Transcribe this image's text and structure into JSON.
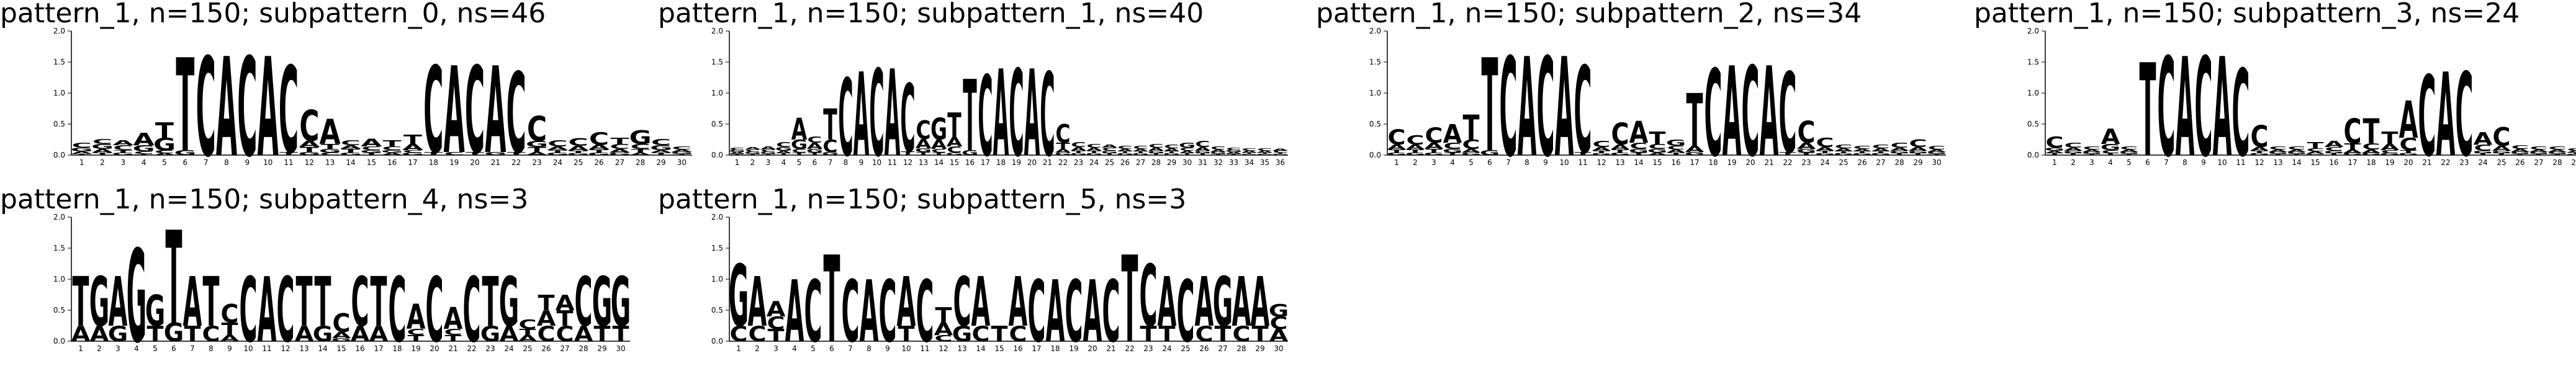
{
  "colors": {
    "A": "#008000",
    "C": "#0000ff",
    "G": "#ffa500",
    "T": "#ff0000"
  },
  "y_ticks": [
    "0.0",
    "0.5",
    "1.0",
    "1.5",
    "2.0"
  ],
  "chart_data": [
    {
      "type": "sequence-logo",
      "title": "pattern_1, n=150; subpattern_0, ns=46",
      "xlabel": "",
      "ylabel": "",
      "ylim": [
        0,
        2
      ],
      "positions": [
        "1",
        "2",
        "3",
        "4",
        "5",
        "6",
        "7",
        "8",
        "9",
        "10",
        "11",
        "12",
        "13",
        "14",
        "15",
        "16",
        "17",
        "18",
        "19",
        "20",
        "21",
        "22",
        "23",
        "24",
        "25",
        "26",
        "27",
        "28",
        "29",
        "30"
      ],
      "columns": [
        {
          "C": 0.08,
          "G": 0.06,
          "A": 0.04,
          "T": 0.02
        },
        {
          "G": 0.08,
          "C": 0.08,
          "A": 0.06,
          "T": 0.04
        },
        {
          "C": 0.08,
          "A": 0.08,
          "G": 0.04,
          "T": 0.04
        },
        {
          "A": 0.2,
          "G": 0.1,
          "C": 0.04,
          "T": 0.02
        },
        {
          "T": 0.25,
          "G": 0.2,
          "C": 0.05,
          "A": 0.03
        },
        {
          "T": 1.5,
          "G": 0.08
        },
        {
          "C": 1.6
        },
        {
          "A": 1.6
        },
        {
          "C": 1.6
        },
        {
          "A": 1.6
        },
        {
          "C": 1.4,
          "T": 0.05
        },
        {
          "C": 0.5,
          "A": 0.1,
          "T": 0.08,
          "G": 0.05
        },
        {
          "A": 0.4,
          "T": 0.08,
          "G": 0.06,
          "C": 0.04
        },
        {
          "C": 0.08,
          "T": 0.06,
          "A": 0.06,
          "G": 0.04
        },
        {
          "A": 0.12,
          "C": 0.06,
          "T": 0.04,
          "G": 0.04
        },
        {
          "T": 0.1,
          "C": 0.06,
          "A": 0.04,
          "G": 0.04
        },
        {
          "T": 0.15,
          "A": 0.1,
          "G": 0.04,
          "C": 0.04
        },
        {
          "C": 1.4,
          "T": 0.05
        },
        {
          "A": 1.4,
          "C": 0.05
        },
        {
          "C": 1.4,
          "T": 0.05
        },
        {
          "A": 1.4,
          "G": 0.05
        },
        {
          "C": 1.3,
          "T": 0.05
        },
        {
          "C": 0.4,
          "G": 0.1,
          "T": 0.08,
          "A": 0.05
        },
        {
          "C": 0.1,
          "A": 0.06,
          "G": 0.04,
          "T": 0.04
        },
        {
          "C": 0.12,
          "A": 0.08,
          "T": 0.04,
          "G": 0.03
        },
        {
          "C": 0.2,
          "A": 0.08,
          "T": 0.05,
          "G": 0.04
        },
        {
          "T": 0.1,
          "C": 0.08,
          "A": 0.06,
          "G": 0.04
        },
        {
          "G": 0.22,
          "C": 0.08,
          "T": 0.06,
          "A": 0.04
        },
        {
          "C": 0.1,
          "G": 0.08,
          "T": 0.04,
          "A": 0.04
        },
        {
          "C": 0.05,
          "A": 0.04,
          "G": 0.03,
          "T": 0.02
        }
      ]
    },
    {
      "type": "sequence-logo",
      "title": "pattern_1, n=150; subpattern_1, ns=40",
      "xlabel": "",
      "ylabel": "",
      "ylim": [
        0,
        2
      ],
      "positions": [
        "1",
        "2",
        "3",
        "4",
        "5",
        "6",
        "7",
        "8",
        "9",
        "10",
        "11",
        "12",
        "13",
        "14",
        "15",
        "16",
        "17",
        "18",
        "19",
        "20",
        "21",
        "22",
        "23",
        "24",
        "25",
        "26",
        "27",
        "28",
        "29",
        "30",
        "31",
        "32",
        "33",
        "34",
        "35",
        "36"
      ],
      "columns": [
        {
          "C": 0.04,
          "A": 0.03,
          "G": 0.03,
          "T": 0.02
        },
        {
          "C": 0.04,
          "A": 0.04,
          "G": 0.03,
          "T": 0.02
        },
        {
          "A": 0.05,
          "C": 0.04,
          "G": 0.03,
          "T": 0.02
        },
        {
          "C": 0.08,
          "G": 0.06,
          "A": 0.04,
          "T": 0.03
        },
        {
          "A": 0.35,
          "G": 0.15,
          "C": 0.06,
          "T": 0.04
        },
        {
          "A": 0.1,
          "C": 0.1,
          "G": 0.06,
          "T": 0.04
        },
        {
          "T": 0.5,
          "C": 0.2,
          "G": 0.05
        },
        {
          "C": 1.25
        },
        {
          "A": 1.35
        },
        {
          "C": 1.4
        },
        {
          "A": 1.4
        },
        {
          "C": 1.1,
          "T": 0.06
        },
        {
          "C": 0.3,
          "A": 0.15,
          "G": 0.06,
          "T": 0.05
        },
        {
          "G": 0.35,
          "A": 0.15,
          "C": 0.06,
          "T": 0.04
        },
        {
          "T": 0.4,
          "A": 0.15,
          "C": 0.1,
          "G": 0.04
        },
        {
          "T": 1.15,
          "G": 0.08
        },
        {
          "C": 1.3
        },
        {
          "A": 1.4
        },
        {
          "C": 1.4
        },
        {
          "A": 1.4
        },
        {
          "C": 1.35
        },
        {
          "C": 0.3,
          "T": 0.1,
          "A": 0.06,
          "G": 0.04
        },
        {
          "C": 0.08,
          "A": 0.06,
          "T": 0.04,
          "G": 0.03
        },
        {
          "C": 0.06,
          "A": 0.05,
          "T": 0.04,
          "G": 0.03
        },
        {
          "C": 0.05,
          "A": 0.05,
          "G": 0.04,
          "T": 0.03
        },
        {
          "C": 0.05,
          "A": 0.04,
          "G": 0.03,
          "T": 0.03
        },
        {
          "C": 0.05,
          "A": 0.04,
          "G": 0.03,
          "T": 0.03
        },
        {
          "C": 0.06,
          "A": 0.05,
          "G": 0.04,
          "T": 0.03
        },
        {
          "C": 0.06,
          "A": 0.05,
          "G": 0.03,
          "T": 0.03
        },
        {
          "G": 0.08,
          "C": 0.05,
          "A": 0.04,
          "T": 0.03
        },
        {
          "C": 0.1,
          "A": 0.06,
          "G": 0.04,
          "T": 0.03
        },
        {
          "C": 0.05,
          "A": 0.04,
          "G": 0.03,
          "T": 0.02
        },
        {
          "C": 0.04,
          "A": 0.03,
          "G": 0.03,
          "T": 0.02
        },
        {
          "C": 0.04,
          "A": 0.03,
          "G": 0.02,
          "T": 0.02
        },
        {
          "C": 0.04,
          "A": 0.03,
          "G": 0.02,
          "T": 0.02
        },
        {
          "C": 0.03,
          "A": 0.03,
          "G": 0.02,
          "T": 0.02
        }
      ]
    },
    {
      "type": "sequence-logo",
      "title": "pattern_1, n=150; subpattern_2, ns=34",
      "xlabel": "",
      "ylabel": "",
      "ylim": [
        0,
        2
      ],
      "positions": [
        "1",
        "2",
        "3",
        "4",
        "5",
        "6",
        "7",
        "8",
        "9",
        "10",
        "11",
        "12",
        "13",
        "14",
        "15",
        "16",
        "17",
        "18",
        "19",
        "20",
        "21",
        "22",
        "23",
        "24",
        "25",
        "26",
        "27",
        "28",
        "29",
        "30"
      ],
      "columns": [
        {
          "C": 0.25,
          "A": 0.08,
          "T": 0.05,
          "G": 0.04
        },
        {
          "C": 0.15,
          "A": 0.08,
          "T": 0.05,
          "G": 0.04
        },
        {
          "C": 0.25,
          "A": 0.1,
          "T": 0.06,
          "G": 0.04
        },
        {
          "A": 0.3,
          "C": 0.1,
          "G": 0.06,
          "T": 0.04
        },
        {
          "T": 0.4,
          "C": 0.15,
          "A": 0.06,
          "G": 0.04
        },
        {
          "T": 1.5,
          "G": 0.08
        },
        {
          "C": 1.6
        },
        {
          "A": 1.6
        },
        {
          "C": 1.6
        },
        {
          "A": 1.6
        },
        {
          "C": 1.4,
          "T": 0.05
        },
        {
          "C": 0.1,
          "A": 0.06,
          "T": 0.04,
          "G": 0.03
        },
        {
          "C": 0.35,
          "A": 0.08,
          "T": 0.05,
          "G": 0.04
        },
        {
          "A": 0.35,
          "C": 0.1,
          "G": 0.06,
          "T": 0.04
        },
        {
          "T": 0.2,
          "C": 0.08,
          "G": 0.06,
          "A": 0.04
        },
        {
          "G": 0.1,
          "C": 0.06,
          "A": 0.05,
          "T": 0.04
        },
        {
          "T": 0.85,
          "A": 0.1,
          "G": 0.05
        },
        {
          "C": 1.4
        },
        {
          "A": 1.45
        },
        {
          "C": 1.45
        },
        {
          "A": 1.45
        },
        {
          "C": 1.3,
          "T": 0.05
        },
        {
          "C": 0.35,
          "A": 0.1,
          "G": 0.06,
          "T": 0.04
        },
        {
          "C": 0.15,
          "A": 0.06,
          "T": 0.04,
          "G": 0.03
        },
        {
          "C": 0.06,
          "A": 0.05,
          "G": 0.03,
          "T": 0.03
        },
        {
          "C": 0.05,
          "A": 0.04,
          "G": 0.03,
          "T": 0.03
        },
        {
          "C": 0.06,
          "A": 0.05,
          "G": 0.03,
          "T": 0.03
        },
        {
          "C": 0.08,
          "A": 0.05,
          "G": 0.04,
          "T": 0.03
        },
        {
          "C": 0.12,
          "A": 0.06,
          "G": 0.04,
          "T": 0.03
        },
        {
          "C": 0.06,
          "A": 0.04,
          "G": 0.03,
          "T": 0.02
        }
      ]
    },
    {
      "type": "sequence-logo",
      "title": "pattern_1, n=150; subpattern_3, ns=24",
      "xlabel": "",
      "ylabel": "",
      "ylim": [
        0,
        2
      ],
      "positions": [
        "1",
        "2",
        "3",
        "4",
        "5",
        "6",
        "7",
        "8",
        "9",
        "10",
        "11",
        "12",
        "13",
        "14",
        "15",
        "16",
        "17",
        "18",
        "19",
        "20",
        "21",
        "22",
        "23",
        "24",
        "25",
        "26",
        "27",
        "28",
        "29",
        "30"
      ],
      "columns": [
        {
          "C": 0.18,
          "G": 0.05,
          "A": 0.04,
          "T": 0.03
        },
        {
          "C": 0.08,
          "A": 0.05,
          "G": 0.04,
          "T": 0.03
        },
        {
          "C": 0.05,
          "A": 0.04,
          "G": 0.03,
          "T": 0.02
        },
        {
          "A": 0.25,
          "G": 0.1,
          "C": 0.05,
          "T": 0.03
        },
        {
          "C": 0.05,
          "A": 0.04,
          "G": 0.03,
          "T": 0.02
        },
        {
          "T": 1.5
        },
        {
          "C": 1.6
        },
        {
          "A": 1.6
        },
        {
          "C": 1.6
        },
        {
          "A": 1.6
        },
        {
          "C": 1.4
        },
        {
          "C": 0.35,
          "A": 0.06,
          "T": 0.04,
          "G": 0.03
        },
        {
          "C": 0.05,
          "A": 0.04,
          "G": 0.03,
          "T": 0.02
        },
        {
          "C": 0.05,
          "A": 0.04,
          "G": 0.03,
          "T": 0.02
        },
        {
          "T": 0.1,
          "C": 0.05,
          "A": 0.04,
          "G": 0.02
        },
        {
          "A": 0.1,
          "C": 0.06,
          "G": 0.04,
          "T": 0.03
        },
        {
          "C": 0.4,
          "T": 0.1,
          "A": 0.06,
          "G": 0.03
        },
        {
          "T": 0.4,
          "C": 0.1,
          "A": 0.06,
          "G": 0.03
        },
        {
          "T": 0.2,
          "A": 0.1,
          "C": 0.05,
          "G": 0.03
        },
        {
          "A": 0.6,
          "C": 0.2,
          "T": 0.05,
          "G": 0.03
        },
        {
          "C": 1.3
        },
        {
          "A": 1.35
        },
        {
          "C": 1.35
        },
        {
          "A": 0.2,
          "C": 0.1,
          "G": 0.04,
          "T": 0.03
        },
        {
          "C": 0.3,
          "A": 0.08,
          "G": 0.04,
          "T": 0.03
        },
        {
          "C": 0.06,
          "A": 0.05,
          "G": 0.03,
          "T": 0.02
        },
        {
          "C": 0.05,
          "A": 0.04,
          "G": 0.03,
          "T": 0.02
        },
        {
          "C": 0.05,
          "A": 0.04,
          "G": 0.03,
          "T": 0.02
        },
        {
          "C": 0.04,
          "A": 0.03,
          "G": 0.02,
          "T": 0.02
        },
        {
          "C": 0.03,
          "A": 0.03,
          "G": 0.02,
          "T": 0.02
        }
      ]
    },
    {
      "type": "sequence-logo",
      "title": "pattern_1, n=150; subpattern_4, ns=3",
      "xlabel": "",
      "ylabel": "",
      "ylim": [
        0,
        2
      ],
      "positions": [
        "1",
        "2",
        "3",
        "4",
        "5",
        "6",
        "7",
        "8",
        "9",
        "10",
        "11",
        "12",
        "13",
        "14",
        "15",
        "16",
        "17",
        "18",
        "19",
        "20",
        "21",
        "22",
        "23",
        "24",
        "25",
        "26",
        "27",
        "28",
        "29",
        "30"
      ],
      "columns": [
        {
          "A": 0.25,
          "T": 0.8
        },
        {
          "A": 0.25,
          "G": 0.8
        },
        {
          "G": 0.25,
          "A": 0.8
        },
        {
          "G": 1.5
        },
        {
          "T": 0.25,
          "G": 0.5
        },
        {
          "T": 1.5,
          "G": 0.3
        },
        {
          "T": 0.25,
          "A": 0.8
        },
        {
          "C": 0.25,
          "T": 0.8
        },
        {
          "C": 0.3,
          "T": 0.2,
          "A": 0.1
        },
        {
          "C": 1.05
        },
        {
          "A": 1.05
        },
        {
          "C": 1.05
        },
        {
          "A": 0.25,
          "T": 0.8
        },
        {
          "G": 0.25,
          "T": 0.8
        },
        {
          "C": 0.3,
          "A": 0.1,
          "G": 0.05
        },
        {
          "C": 0.8,
          "A": 0.25
        },
        {
          "T": 0.8,
          "A": 0.25
        },
        {
          "C": 1.05
        },
        {
          "A": 0.4,
          "T": 0.1,
          "C": 0.1
        },
        {
          "C": 1.05
        },
        {
          "A": 0.35,
          "T": 0.1,
          "C": 0.1
        },
        {
          "C": 1.05
        },
        {
          "G": 0.25,
          "T": 0.8
        },
        {
          "A": 0.25,
          "G": 0.8
        },
        {
          "C": 0.15,
          "A": 0.1,
          "T": 0.1
        },
        {
          "C": 0.25,
          "A": 0.25,
          "T": 0.25
        },
        {
          "C": 0.25,
          "T": 0.25,
          "A": 0.25
        },
        {
          "A": 0.25,
          "C": 0.8
        },
        {
          "T": 0.25,
          "G": 0.8
        },
        {
          "T": 0.25,
          "G": 0.8
        }
      ]
    },
    {
      "type": "sequence-logo",
      "title": "pattern_1, n=150; subpattern_5, ns=3",
      "xlabel": "",
      "ylabel": "",
      "ylim": [
        0,
        2
      ],
      "positions": [
        "1",
        "2",
        "3",
        "4",
        "5",
        "6",
        "7",
        "8",
        "9",
        "10",
        "11",
        "12",
        "13",
        "14",
        "15",
        "16",
        "17",
        "18",
        "19",
        "20",
        "21",
        "22",
        "23",
        "24",
        "25",
        "26",
        "27",
        "28",
        "29",
        "30"
      ],
      "columns": [
        {
          "C": 0.25,
          "G": 1.0
        },
        {
          "C": 0.25,
          "A": 0.8
        },
        {
          "A": 0.25,
          "T": 0.2,
          "C": 0.2
        },
        {
          "A": 1.0
        },
        {
          "C": 1.0
        },
        {
          "T": 1.4
        },
        {
          "C": 1.0
        },
        {
          "A": 1.0
        },
        {
          "C": 1.0
        },
        {
          "A": 0.8,
          "T": 0.25
        },
        {
          "C": 1.0
        },
        {
          "T": 0.25,
          "A": 0.2,
          "C": 0.1
        },
        {
          "G": 0.25,
          "C": 0.8
        },
        {
          "C": 0.25,
          "A": 0.8
        },
        {
          "T": 0.25,
          "T2": 0
        },
        {
          "A": 0.8,
          "C": 0.25
        },
        {
          "C": 1.0
        },
        {
          "A": 1.0
        },
        {
          "C": 1.0
        },
        {
          "A": 1.0
        },
        {
          "C": 1.0
        },
        {
          "T": 1.4
        },
        {
          "T": 0.25,
          "C": 1.0
        },
        {
          "A": 0.8,
          "T": 0.25
        },
        {
          "C": 1.0
        },
        {
          "C": 0.25,
          "A": 0.8
        },
        {
          "T": 0.25,
          "G": 0.8
        },
        {
          "C": 0.25,
          "A": 0.8
        },
        {
          "A": 0.8,
          "T": 0.25
        },
        {
          "A": 0.2,
          "C": 0.2,
          "G": 0.2
        }
      ]
    }
  ]
}
